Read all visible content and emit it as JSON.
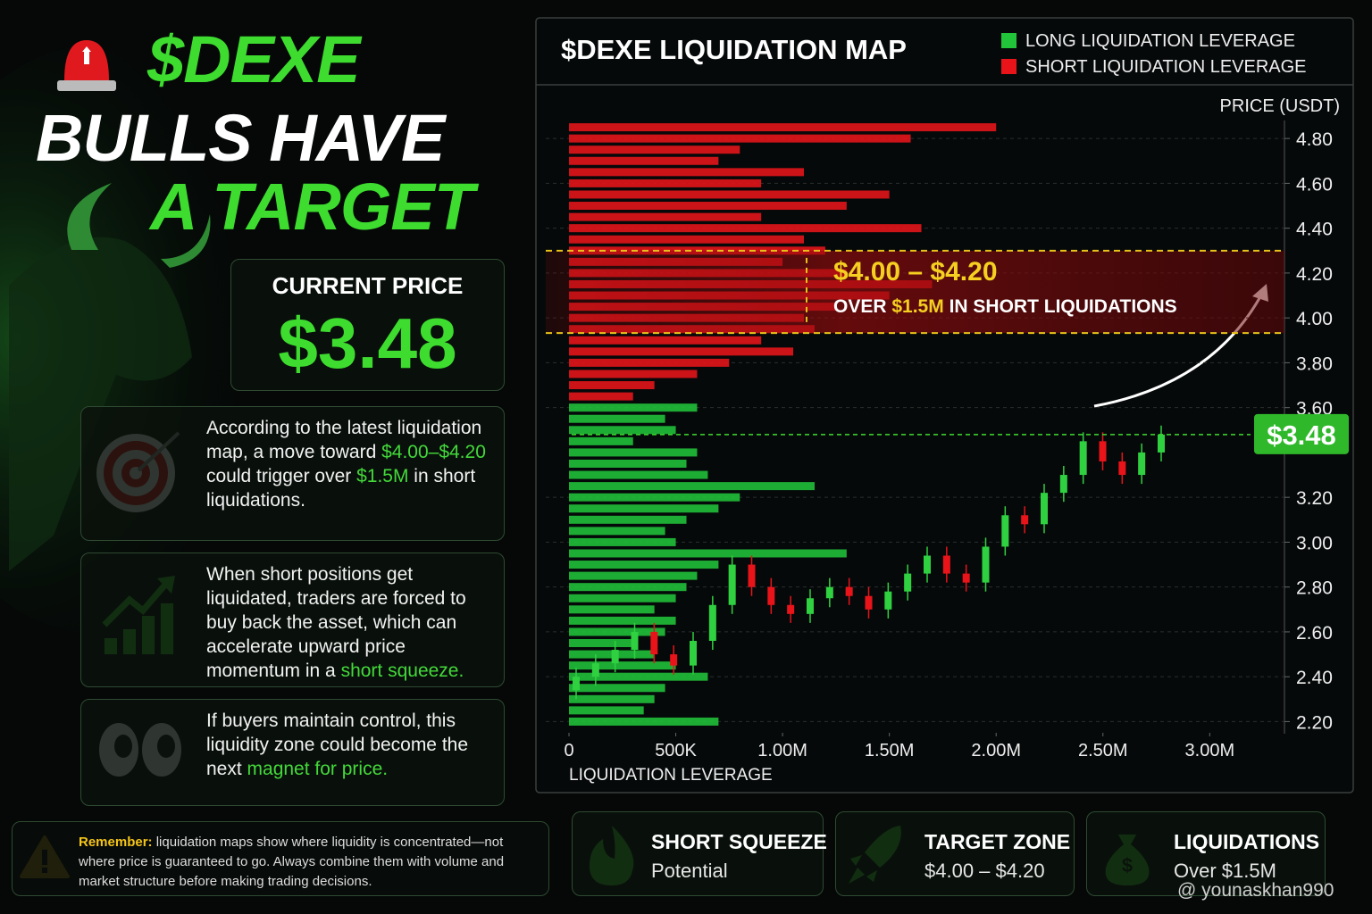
{
  "header": {
    "line_1": "$DEXE",
    "line_2": "BULLS HAVE",
    "line_3": "A TARGET"
  },
  "price_card": {
    "label": "CURRENT PRICE",
    "value": "$3.48"
  },
  "notes": [
    {
      "parts": [
        {
          "text": "According to the latest liquidation map, a move toward "
        },
        {
          "text": "$4.00–$4.20",
          "hl": true
        },
        {
          "text": " could trigger over "
        },
        {
          "text": "$1.5M",
          "hl": true
        },
        {
          "text": " in short liquidations."
        }
      ]
    },
    {
      "parts": [
        {
          "text": "When short positions get liquidated, traders are forced to buy back the asset, which can accelerate upward price momentum in a "
        },
        {
          "text": "short squeeze.",
          "hl": true
        }
      ]
    },
    {
      "parts": [
        {
          "text": "If buyers maintain control, this liquidity zone could become the next "
        },
        {
          "text": "magnet for price.",
          "hl": true
        }
      ]
    }
  ],
  "remember": {
    "lead": "Remember:",
    "text": "liquidation maps show where liquidity is concentrated—not where price is guaranteed to go. Always combine them with volume and market structure before making trading decisions."
  },
  "cards": [
    {
      "title": "SHORT SQUEEZE",
      "subtitle": "Potential"
    },
    {
      "title": "TARGET ZONE",
      "subtitle": "$4.00 – $4.20"
    },
    {
      "title": "LIQUIDATIONS",
      "subtitle": "Over $1.5M"
    }
  ],
  "watermark": "@ younaskhan990",
  "chart_data": {
    "type": "liquidation-map",
    "title": "$DEXE LIQUIDATION MAP",
    "y_label": "PRICE (USDT)",
    "x_label": "LIQUIDATION LEVERAGE",
    "xlim": [
      0,
      3350000
    ],
    "xticks": [
      0,
      {
        "value": 500000,
        "label": "500K"
      },
      {
        "value": 1000000,
        "label": "1.00M"
      },
      {
        "value": 1500000,
        "label": "1.50M"
      },
      {
        "value": 2000000,
        "label": "2.00M"
      },
      {
        "value": 2500000,
        "label": "2.50M"
      },
      {
        "value": 3000000,
        "label": "3.00M"
      }
    ],
    "ylim": [
      2.15,
      4.92
    ],
    "yticks": [
      {
        "value": 2.2,
        "label": "2.20"
      },
      {
        "value": 2.4,
        "label": "2.40"
      },
      {
        "value": 2.6,
        "label": "2.60"
      },
      {
        "value": 2.8,
        "label": "2.80"
      },
      {
        "value": 3.0,
        "label": "3.00"
      },
      {
        "value": 3.2,
        "label": "3.20"
      },
      {
        "value": 3.6,
        "label": "3.60"
      },
      {
        "value": 3.8,
        "label": "3.80"
      },
      {
        "value": 4.0,
        "label": "4.00"
      },
      {
        "value": 4.2,
        "label": "4.20"
      },
      {
        "value": 4.4,
        "label": "4.40"
      },
      {
        "value": 4.6,
        "label": "4.60"
      },
      {
        "value": 4.8,
        "label": "4.80"
      }
    ],
    "grid": true,
    "series": [
      {
        "name": "LONG LIQUIDATION LEVERAGE",
        "color": "#22c43a",
        "levels": [
          3.6,
          3.55,
          3.5,
          3.45,
          3.4,
          3.35,
          3.3,
          3.25,
          3.2,
          3.15,
          3.1,
          3.05,
          3.0,
          2.95,
          2.9,
          2.85,
          2.8,
          2.75,
          2.7,
          2.65,
          2.6,
          2.55,
          2.5,
          2.45,
          2.4,
          2.35,
          2.3,
          2.25,
          2.2
        ],
        "values": [
          600000,
          450000,
          500000,
          300000,
          600000,
          550000,
          650000,
          1150000,
          800000,
          700000,
          550000,
          450000,
          500000,
          1300000,
          700000,
          600000,
          550000,
          500000,
          400000,
          500000,
          450000,
          300000,
          400000,
          500000,
          650000,
          450000,
          400000,
          350000,
          700000
        ]
      },
      {
        "name": "SHORT LIQUIDATION LEVERAGE",
        "color": "#e8141a",
        "levels": [
          4.85,
          4.8,
          4.75,
          4.7,
          4.65,
          4.6,
          4.55,
          4.5,
          4.45,
          4.4,
          4.35,
          4.3,
          4.25,
          4.2,
          4.15,
          4.1,
          4.05,
          4.0,
          3.95,
          3.9,
          3.85,
          3.8,
          3.75,
          3.7,
          3.65
        ],
        "values": [
          2000000,
          1600000,
          800000,
          700000,
          1100000,
          900000,
          1500000,
          1300000,
          900000,
          1650000,
          1100000,
          1200000,
          1000000,
          1300000,
          1700000,
          1500000,
          1250000,
          1100000,
          1150000,
          900000,
          1050000,
          750000,
          600000,
          400000,
          300000
        ]
      }
    ],
    "candles": {
      "open": [
        2.34,
        2.4,
        2.46,
        2.52,
        2.6,
        2.5,
        2.45,
        2.56,
        2.72,
        2.9,
        2.8,
        2.72,
        2.68,
        2.75,
        2.8,
        2.76,
        2.7,
        2.78,
        2.86,
        2.94,
        2.86,
        2.82,
        2.98,
        3.12,
        3.08,
        3.22,
        3.3,
        3.45,
        3.36,
        3.3,
        3.4
      ],
      "high": [
        2.44,
        2.5,
        2.56,
        2.64,
        2.64,
        2.54,
        2.6,
        2.76,
        2.94,
        2.94,
        2.84,
        2.76,
        2.79,
        2.84,
        2.84,
        2.8,
        2.82,
        2.9,
        2.98,
        2.98,
        2.9,
        3.02,
        3.16,
        3.16,
        3.26,
        3.34,
        3.49,
        3.49,
        3.4,
        3.44,
        3.52
      ],
      "low": [
        2.3,
        2.36,
        2.42,
        2.48,
        2.46,
        2.41,
        2.41,
        2.52,
        2.68,
        2.76,
        2.68,
        2.64,
        2.64,
        2.71,
        2.72,
        2.66,
        2.66,
        2.74,
        2.82,
        2.82,
        2.78,
        2.78,
        2.94,
        3.04,
        3.04,
        3.18,
        3.26,
        3.32,
        3.26,
        3.26,
        3.36
      ],
      "close": [
        2.4,
        2.46,
        2.52,
        2.6,
        2.5,
        2.45,
        2.56,
        2.72,
        2.9,
        2.8,
        2.72,
        2.68,
        2.75,
        2.8,
        2.76,
        2.7,
        2.78,
        2.86,
        2.94,
        2.86,
        2.82,
        2.98,
        3.12,
        3.08,
        3.22,
        3.3,
        3.45,
        3.36,
        3.3,
        3.4,
        3.48
      ]
    },
    "current_price": 3.48,
    "current_price_label": "$3.48",
    "zone": {
      "low": 4.0,
      "high": 4.2
    },
    "annotation": {
      "title": "$4.00 – $4.20",
      "parts": [
        {
          "text": "OVER "
        },
        {
          "text": "$1.5M",
          "hl": true
        },
        {
          "text": " IN SHORT LIQUIDATIONS"
        }
      ]
    }
  }
}
